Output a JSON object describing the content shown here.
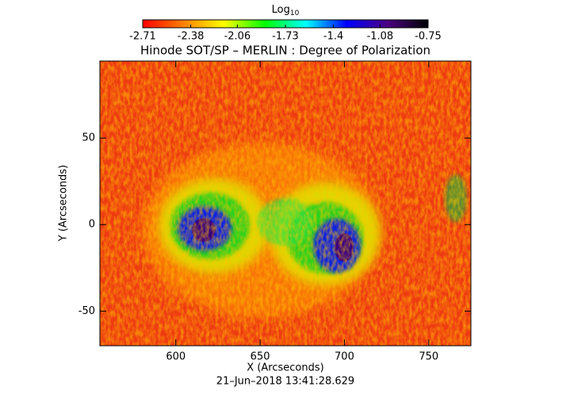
{
  "chart_data": {
    "type": "image",
    "title": "Hinode SOT/SP – MERLIN : Degree of Polarization",
    "x_label": "X (Arcseconds)",
    "y_label": "Y (Arcseconds)",
    "date": "21–Jun–2018 13:41:28.629",
    "xlim": [
      555,
      775
    ],
    "ylim": [
      -70,
      94.5
    ],
    "xticks": [
      600,
      650,
      700,
      750
    ],
    "yticks": [
      -50,
      0,
      50
    ],
    "colorbar": {
      "label": "Log",
      "label_subscript": "10",
      "clim": [
        -2.71,
        -0.75
      ],
      "ticks": [
        -2.71,
        -2.38,
        -2.06,
        -1.73,
        -1.4,
        -1.08,
        -0.75
      ],
      "colormap": [
        "#ff0000",
        "#ff8000",
        "#ffff00",
        "#00ff00",
        "#00ffff",
        "#0000ff",
        "#4b0082",
        "#000000"
      ]
    }
  }
}
